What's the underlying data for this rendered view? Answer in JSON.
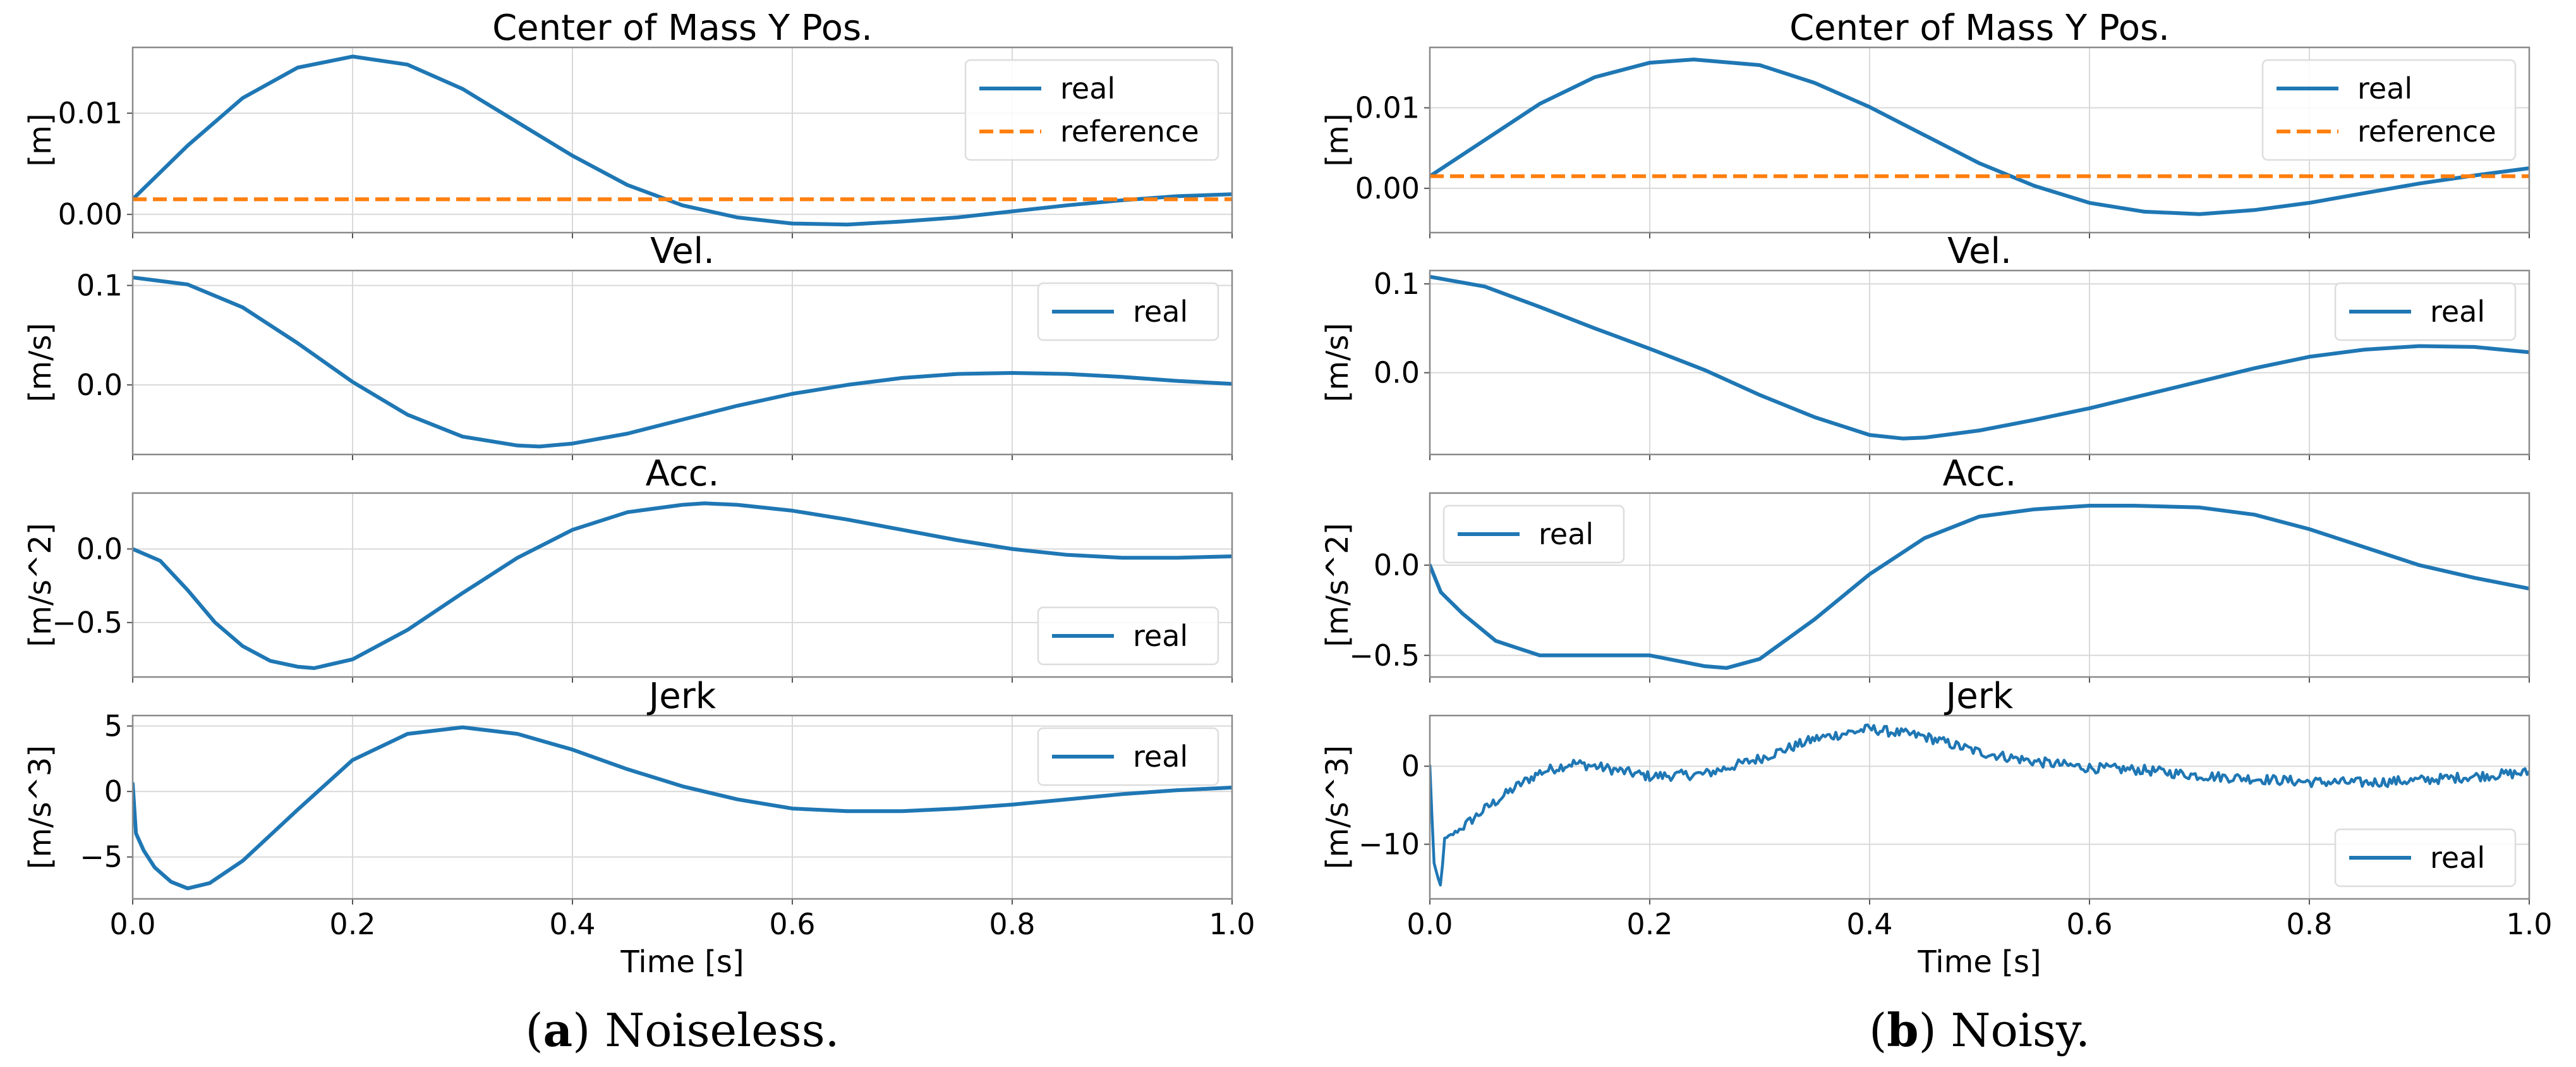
{
  "chart_data": [
    {
      "panel": "a",
      "caption": {
        "label": "a",
        "text": "Noiseless."
      },
      "xlabel": "Time [s]",
      "xlim": [
        0,
        1
      ],
      "xticks": [
        "0.0",
        "0.2",
        "0.4",
        "0.6",
        "0.8",
        "1.0"
      ],
      "subplots": [
        {
          "type": "line",
          "title": "Center of Mass Y Pos.",
          "ylabel": "[m]",
          "ylim": [
            -0.0018,
            0.0165
          ],
          "yticks": [
            {
              "value": 0,
              "label": "0.00"
            },
            {
              "value": 0.01,
              "label": "0.01"
            }
          ],
          "legend": "top-right",
          "series": [
            {
              "name": "real",
              "color": "#1f77b4",
              "dash": false,
              "x": [
                0,
                0.05,
                0.1,
                0.15,
                0.2,
                0.25,
                0.3,
                0.35,
                0.4,
                0.45,
                0.5,
                0.55,
                0.6,
                0.65,
                0.7,
                0.75,
                0.8,
                0.85,
                0.9,
                0.95,
                1.0
              ],
              "y": [
                0.0015,
                0.0068,
                0.0115,
                0.0145,
                0.0156,
                0.0148,
                0.0124,
                0.0091,
                0.0058,
                0.0029,
                0.0009,
                -0.0003,
                -0.0009,
                -0.001,
                -0.0007,
                -0.0003,
                0.0003,
                0.0009,
                0.0014,
                0.0018,
                0.002
              ]
            },
            {
              "name": "reference",
              "color": "#ff7f0e",
              "dash": true,
              "x": [
                0,
                1
              ],
              "y": [
                0.0015,
                0.0015
              ]
            }
          ]
        },
        {
          "type": "line",
          "title": "Vel.",
          "ylabel": "[m/s]",
          "ylim": [
            -0.07,
            0.115
          ],
          "yticks": [
            {
              "value": 0,
              "label": "0.0"
            },
            {
              "value": 0.1,
              "label": "0.1"
            }
          ],
          "legend": "top-right",
          "series": [
            {
              "name": "real",
              "color": "#1f77b4",
              "dash": false,
              "x": [
                0,
                0.05,
                0.1,
                0.15,
                0.2,
                0.25,
                0.3,
                0.35,
                0.37,
                0.4,
                0.45,
                0.5,
                0.55,
                0.6,
                0.65,
                0.7,
                0.75,
                0.8,
                0.85,
                0.9,
                0.95,
                1.0
              ],
              "y": [
                0.108,
                0.101,
                0.078,
                0.042,
                0.003,
                -0.03,
                -0.052,
                -0.061,
                -0.062,
                -0.059,
                -0.049,
                -0.035,
                -0.021,
                -0.009,
                0.0,
                0.007,
                0.011,
                0.012,
                0.011,
                0.008,
                0.004,
                0.001
              ]
            }
          ]
        },
        {
          "type": "line",
          "title": "Acc.",
          "ylabel": "[m/s^2]",
          "ylim": [
            -0.87,
            0.38
          ],
          "yticks": [
            {
              "value": 0,
              "label": "0.0"
            },
            {
              "value": -0.5,
              "label": "−0.5"
            }
          ],
          "legend": "bottom-right",
          "series": [
            {
              "name": "real",
              "color": "#1f77b4",
              "dash": false,
              "x": [
                0,
                0.025,
                0.05,
                0.075,
                0.1,
                0.125,
                0.15,
                0.165,
                0.2,
                0.25,
                0.3,
                0.35,
                0.4,
                0.45,
                0.5,
                0.52,
                0.55,
                0.6,
                0.65,
                0.7,
                0.75,
                0.8,
                0.85,
                0.9,
                0.95,
                1.0
              ],
              "y": [
                0.0,
                -0.08,
                -0.28,
                -0.5,
                -0.66,
                -0.76,
                -0.8,
                -0.81,
                -0.75,
                -0.55,
                -0.3,
                -0.06,
                0.13,
                0.25,
                0.3,
                0.31,
                0.3,
                0.26,
                0.2,
                0.13,
                0.06,
                0.0,
                -0.04,
                -0.06,
                -0.06,
                -0.05
              ]
            }
          ]
        },
        {
          "type": "line",
          "title": "Jerk",
          "ylabel": "[m/s^3]",
          "ylim": [
            -8.2,
            5.8
          ],
          "yticks": [
            {
              "value": 5,
              "label": "5"
            },
            {
              "value": 0,
              "label": "0"
            },
            {
              "value": -5,
              "label": "−5"
            }
          ],
          "legend": "top-right",
          "series": [
            {
              "name": "real",
              "color": "#1f77b4",
              "dash": false,
              "x": [
                0,
                0.003,
                0.01,
                0.02,
                0.035,
                0.05,
                0.07,
                0.1,
                0.15,
                0.2,
                0.25,
                0.3,
                0.35,
                0.4,
                0.45,
                0.5,
                0.55,
                0.6,
                0.65,
                0.7,
                0.75,
                0.8,
                0.85,
                0.9,
                0.95,
                1.0
              ],
              "y": [
                0.6,
                -3.2,
                -4.5,
                -5.8,
                -6.9,
                -7.4,
                -7.0,
                -5.3,
                -1.4,
                2.4,
                4.4,
                4.9,
                4.4,
                3.2,
                1.7,
                0.4,
                -0.6,
                -1.3,
                -1.5,
                -1.5,
                -1.3,
                -1.0,
                -0.6,
                -0.2,
                0.1,
                0.3
              ]
            }
          ]
        }
      ]
    },
    {
      "panel": "b",
      "caption": {
        "label": "b",
        "text": "Noisy."
      },
      "xlabel": "Time [s]",
      "xlim": [
        0,
        1
      ],
      "xticks": [
        "0.0",
        "0.2",
        "0.4",
        "0.6",
        "0.8",
        "1.0"
      ],
      "subplots": [
        {
          "type": "line",
          "title": "Center of Mass Y Pos.",
          "ylabel": "[m]",
          "ylim": [
            -0.0055,
            0.0175
          ],
          "yticks": [
            {
              "value": 0,
              "label": "0.00"
            },
            {
              "value": 0.01,
              "label": "0.01"
            }
          ],
          "legend": "top-right",
          "series": [
            {
              "name": "real",
              "color": "#1f77b4",
              "dash": false,
              "x": [
                0,
                0.05,
                0.1,
                0.15,
                0.2,
                0.24,
                0.3,
                0.35,
                0.4,
                0.45,
                0.5,
                0.55,
                0.6,
                0.65,
                0.7,
                0.75,
                0.8,
                0.85,
                0.9,
                0.95,
                1.0
              ],
              "y": [
                0.0015,
                0.006,
                0.0105,
                0.0138,
                0.0156,
                0.016,
                0.0153,
                0.0131,
                0.0101,
                0.0066,
                0.0031,
                0.0003,
                -0.0018,
                -0.0029,
                -0.0032,
                -0.0027,
                -0.0018,
                -0.0006,
                0.0006,
                0.0016,
                0.0025
              ]
            },
            {
              "name": "reference",
              "color": "#ff7f0e",
              "dash": true,
              "x": [
                0,
                1
              ],
              "y": [
                0.0015,
                0.0015
              ]
            }
          ]
        },
        {
          "type": "line",
          "title": "Vel.",
          "ylabel": "[m/s]",
          "ylim": [
            -0.092,
            0.115
          ],
          "yticks": [
            {
              "value": 0,
              "label": "0.0"
            },
            {
              "value": 0.1,
              "label": "0.1"
            }
          ],
          "legend": "top-right",
          "series": [
            {
              "name": "real",
              "color": "#1f77b4",
              "dash": false,
              "x": [
                0,
                0.05,
                0.1,
                0.15,
                0.2,
                0.25,
                0.3,
                0.35,
                0.4,
                0.43,
                0.45,
                0.5,
                0.55,
                0.6,
                0.65,
                0.7,
                0.75,
                0.8,
                0.85,
                0.9,
                0.95,
                1.0
              ],
              "y": [
                0.108,
                0.097,
                0.074,
                0.05,
                0.027,
                0.003,
                -0.025,
                -0.05,
                -0.07,
                -0.074,
                -0.073,
                -0.065,
                -0.053,
                -0.04,
                -0.025,
                -0.01,
                0.005,
                0.018,
                0.026,
                0.03,
                0.029,
                0.023
              ]
            }
          ]
        },
        {
          "type": "line",
          "title": "Acc.",
          "ylabel": "[m/s^2]",
          "ylim": [
            -0.62,
            0.4
          ],
          "yticks": [
            {
              "value": 0,
              "label": "0.0"
            },
            {
              "value": -0.5,
              "label": "−0.5"
            }
          ],
          "legend": "top-left",
          "series": [
            {
              "name": "real",
              "color": "#1f77b4",
              "dash": false,
              "x": [
                0,
                0.01,
                0.03,
                0.06,
                0.1,
                0.15,
                0.2,
                0.25,
                0.27,
                0.3,
                0.35,
                0.4,
                0.45,
                0.5,
                0.55,
                0.6,
                0.64,
                0.7,
                0.75,
                0.8,
                0.85,
                0.9,
                0.95,
                1.0
              ],
              "y": [
                0.0,
                -0.15,
                -0.27,
                -0.42,
                -0.5,
                -0.5,
                -0.5,
                -0.56,
                -0.57,
                -0.52,
                -0.3,
                -0.05,
                0.15,
                0.27,
                0.31,
                0.33,
                0.33,
                0.32,
                0.28,
                0.2,
                0.1,
                0.0,
                -0.07,
                -0.13
              ]
            }
          ]
        },
        {
          "type": "line",
          "title": "Jerk",
          "ylabel": "[m/s^3]",
          "ylim": [
            -17,
            6.5
          ],
          "yticks": [
            {
              "value": 0,
              "label": "0"
            },
            {
              "value": -10,
              "label": "−10"
            }
          ],
          "legend": "bottom-right",
          "series": [
            {
              "name": "real",
              "color": "#1f77b4",
              "dash": false,
              "noisy": true,
              "x": [
                0,
                0.004,
                0.01,
                0.013,
                0.03,
                0.05,
                0.08,
                0.1,
                0.13,
                0.15,
                0.2,
                0.25,
                0.3,
                0.35,
                0.4,
                0.45,
                0.5,
                0.55,
                0.6,
                0.65,
                0.7,
                0.75,
                0.8,
                0.85,
                0.9,
                0.95,
                1.0
              ],
              "y": [
                0.0,
                -13.0,
                -15.5,
                -9.5,
                -7.8,
                -5.5,
                -2.5,
                -0.8,
                0.4,
                0.0,
                -1.3,
                -1.0,
                1.0,
                3.5,
                4.8,
                3.8,
                1.8,
                0.6,
                -0.2,
                -0.5,
                -1.2,
                -1.6,
                -2.0,
                -2.1,
                -1.8,
                -1.3,
                -0.8
              ]
            }
          ]
        }
      ]
    }
  ]
}
